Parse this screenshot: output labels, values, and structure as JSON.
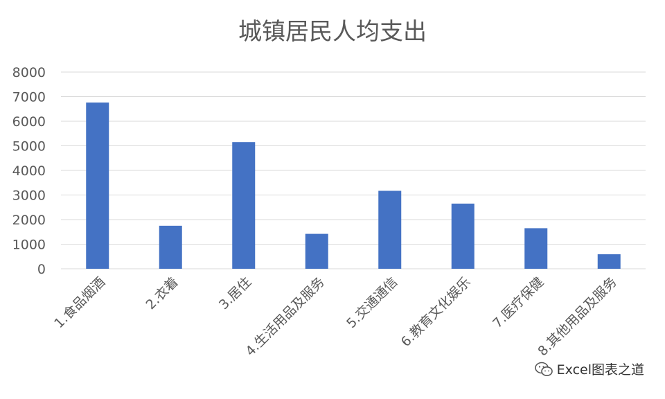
{
  "colors": {
    "bar": "#4472C4",
    "grid": "#D9D9D9",
    "text": "#595959"
  },
  "chart_data": {
    "type": "bar",
    "title": "城镇居民人均支出",
    "categories": [
      "1.食品烟酒",
      "2.衣着",
      "3.居住",
      "4.生活用品及服务",
      "5.交通通信",
      "6.教育文化娱乐",
      "7.医疗保健",
      "8.其他用品及服务"
    ],
    "values": [
      6760,
      1750,
      5150,
      1420,
      3170,
      2650,
      1650,
      590
    ],
    "yticks": [
      0,
      1000,
      2000,
      3000,
      4000,
      5000,
      6000,
      7000,
      8000
    ],
    "ylim": [
      0,
      8000
    ],
    "grid": true,
    "legend": "none"
  },
  "watermark": {
    "icon": "wechat-icon",
    "text": "Excel图表之道"
  }
}
